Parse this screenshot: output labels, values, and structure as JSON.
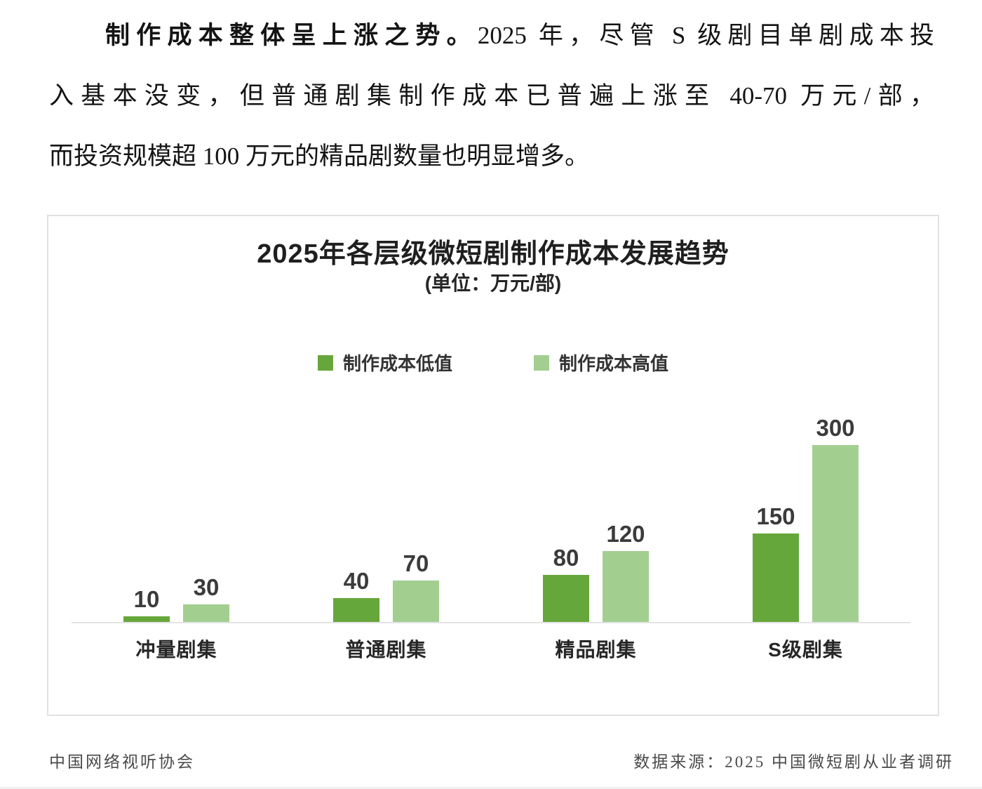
{
  "paragraph": {
    "bold_lead": "制作成本整体呈上涨之势。",
    "line1_rest": "2025 年，尽管 S 级剧目单剧成本投",
    "line2": "入基本没变，但普通剧集制作成本已普遍上涨至 40-70 万元/部，",
    "line3": "而投资规模超 100 万元的精品剧数量也明显增多。"
  },
  "chart": {
    "title": "2025年各层级微短剧制作成本发展趋势",
    "subtitle": "(单位：万元/部)"
  },
  "chart_data": {
    "type": "bar",
    "title": "2025年各层级微短剧制作成本发展趋势",
    "subtitle": "(单位：万元/部)",
    "unit": "万元/部",
    "categories": [
      "冲量剧集",
      "普通剧集",
      "精品剧集",
      "S级剧集"
    ],
    "series": [
      {
        "name": "制作成本低值",
        "color": "#66a73b",
        "values": [
          10,
          40,
          80,
          150
        ]
      },
      {
        "name": "制作成本高值",
        "color": "#a2cf90",
        "values": [
          30,
          70,
          120,
          300
        ]
      }
    ],
    "ylim": [
      0,
      320
    ],
    "grid": false,
    "legend_position": "top-center",
    "value_labels": true,
    "axis_line_color": "#e3e3e3"
  },
  "footer": {
    "left": "中国网络视听协会",
    "right": "数据来源：2025 中国微短剧从业者调研"
  }
}
